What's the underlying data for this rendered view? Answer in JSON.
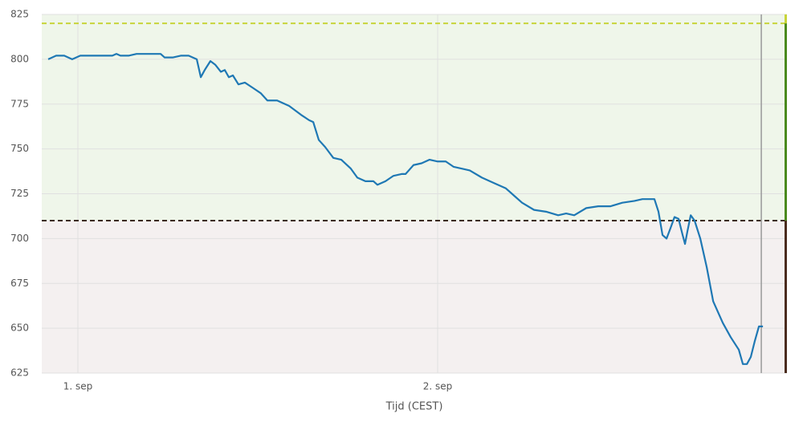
{
  "chart_data": {
    "type": "line",
    "x_label": "Tijd (CEST)",
    "x": [
      -1.98,
      -1.45,
      -0.91,
      -0.38,
      0.16,
      0.7,
      1.23,
      2.3,
      2.57,
      2.84,
      3.38,
      3.91,
      5.52,
      5.79,
      6.32,
      6.86,
      7.39,
      7.66,
      7.93,
      8.2,
      8.46,
      8.84,
      9.16,
      9.54,
      9.8,
      10.07,
      10.34,
      10.71,
      11.14,
      11.68,
      12.21,
      12.64,
      13.29,
      14.09,
      14.89,
      15.43,
      15.7,
      16.07,
      16.5,
      17.04,
      17.57,
      18.21,
      18.64,
      19.18,
      19.71,
      19.98,
      20.52,
      21.05,
      21.59,
      21.86,
      22.39,
      22.93,
      23.46,
      24.0,
      24.54,
      25.07,
      25.61,
      26.14,
      26.95,
      27.75,
      28.55,
      29.09,
      29.63,
      30.43,
      31.23,
      32.04,
      32.57,
      33.11,
      33.91,
      34.71,
      35.52,
      36.32,
      37.13,
      37.66,
      38.46,
      38.73,
      39.0,
      39.27,
      39.54,
      39.8,
      40.07,
      40.34,
      40.5,
      40.66,
      40.88,
      41.14,
      41.52,
      41.95,
      42.38,
      43.02,
      43.55,
      44.09,
      44.36,
      44.63,
      44.89,
      45.16,
      45.43,
      45.7
    ],
    "series": [
      {
        "color": "#1f78b4",
        "values": [
          800,
          802,
          802,
          800,
          802,
          802,
          802,
          802,
          803,
          802,
          802,
          803,
          803,
          801,
          801,
          802,
          802,
          801,
          800,
          790,
          794,
          799,
          797,
          793,
          794,
          790,
          791,
          786,
          787,
          784,
          781,
          777,
          777,
          774,
          769,
          766,
          765,
          755,
          751,
          745,
          744,
          739,
          734,
          732,
          732,
          730,
          732,
          735,
          736,
          736,
          741,
          742,
          744,
          743,
          743,
          740,
          739,
          738,
          734,
          731,
          728,
          724,
          720,
          716,
          715,
          713,
          714,
          713,
          717,
          718,
          718,
          720,
          721,
          722,
          722,
          715,
          702,
          700,
          706,
          712,
          711,
          702,
          697,
          704,
          713,
          710,
          700,
          684,
          665,
          653,
          645,
          638,
          630,
          630,
          634,
          643,
          651,
          651
        ]
      }
    ],
    "xlim": [
      -2.41,
      47.3
    ],
    "xticks": [
      {
        "value": 0,
        "label": "1. sep"
      },
      {
        "value": 24,
        "label": "2. sep"
      }
    ],
    "ylim": [
      625,
      825
    ],
    "yticks": [
      625,
      650,
      675,
      700,
      725,
      750,
      775,
      800,
      825
    ],
    "grid": true,
    "bands": [
      {
        "from": 710,
        "to": 825,
        "color": "#eff6ea"
      },
      {
        "from": 625,
        "to": 710,
        "color": "#f4f0f0"
      }
    ],
    "thresholds": [
      {
        "value": 820,
        "color": "#c8d43a"
      },
      {
        "value": 710,
        "color": "#3b2a1a"
      }
    ],
    "side_bar": [
      {
        "from": 820,
        "to": 825,
        "color": "#c8d43a"
      },
      {
        "from": 710,
        "to": 820,
        "color": "#4a8a1e"
      },
      {
        "from": 625,
        "to": 710,
        "color": "#4a2c1e"
      }
    ],
    "vline": {
      "value": 45.59,
      "color": "#999999"
    }
  }
}
